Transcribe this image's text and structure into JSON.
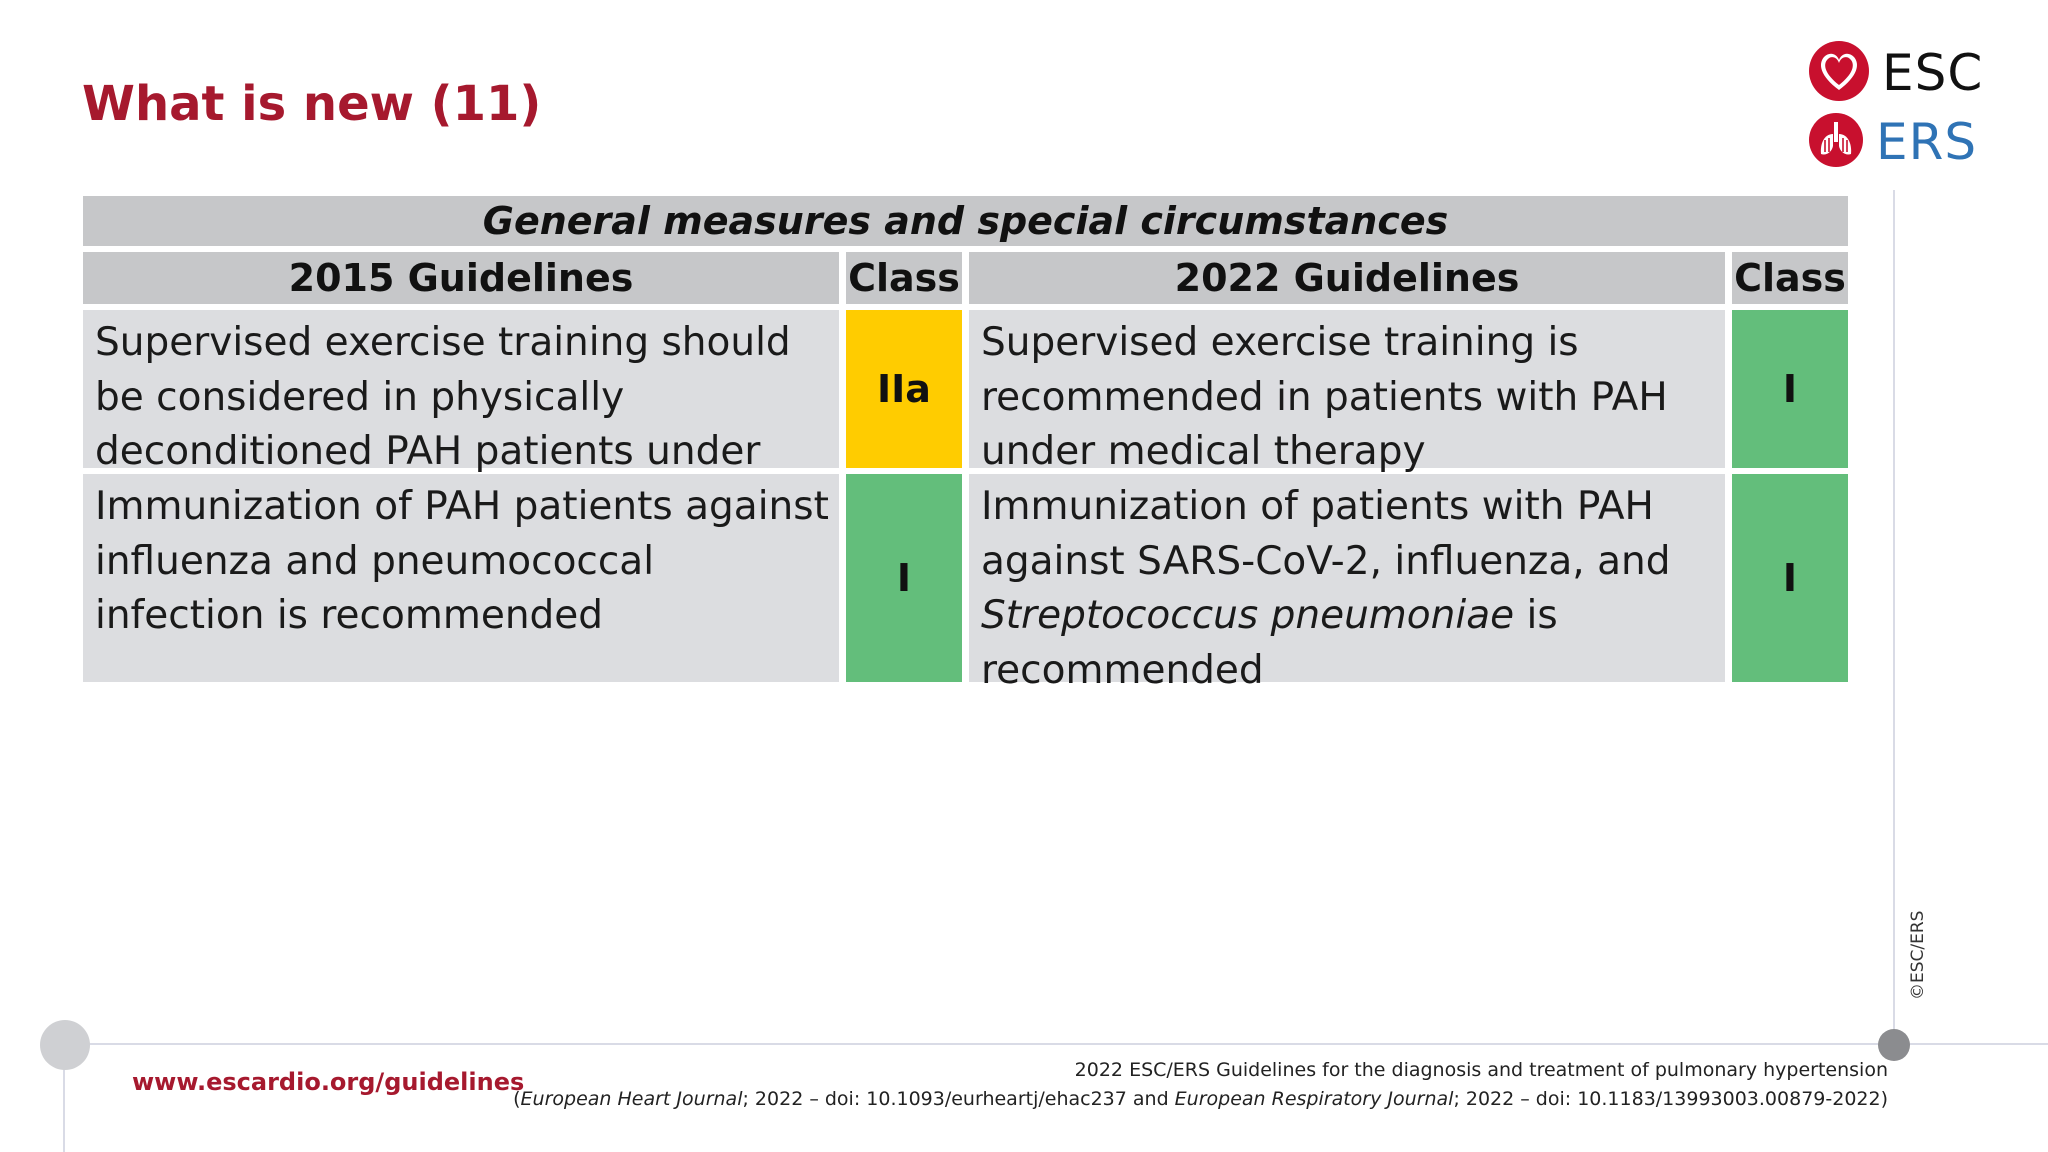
{
  "slide": {
    "title": "What is new (11)"
  },
  "logo": {
    "esc_text": "ESC",
    "ers_text": "ERS",
    "esc_icon": "heart-icon",
    "ers_icon": "lungs-icon"
  },
  "table": {
    "title": "General measures and special circumstances",
    "headers": {
      "col_2015": "2015 Guidelines",
      "class_2015": "Class",
      "col_2022": "2022 Guidelines",
      "class_2022": "Class"
    },
    "rows": [
      {
        "old_text": "Supervised exercise training should be considered in physically deconditioned PAH patients under medical therapy",
        "old_class": "IIa",
        "new_text": "Supervised exercise training is recommended in patients with PAH under medical therapy",
        "new_class": "I"
      },
      {
        "old_text": "Immunization of PAH patients against influenza and pneumococcal infection is recommended",
        "old_class": "I",
        "new_text_part1": "Immunization of patients with PAH against SARS-CoV-2, influenza, and",
        "new_text_italic": "Streptococcus pneumoniae",
        "new_text_part2": "is recommended",
        "new_class": "I"
      }
    ]
  },
  "colors": {
    "title": "#a6192e",
    "class_IIa": "#ffcc00",
    "class_I": "#63be7b",
    "ers_blue": "#2f73b5"
  },
  "footer": {
    "url": "www.escardio.org/guidelines",
    "ref_line1": "2022 ESC/ERS Guidelines for the diagnosis and treatment of pulmonary hypertension",
    "ref_journal1": "European Heart Journal",
    "ref_doi1": "; 2022 – doi: 10.1093/eurheartj/ehac237 and ",
    "ref_journal2": "European Respiratory Journal",
    "ref_doi2": "; 2022 – doi: 10.1183/13993003.00879-2022)",
    "ref_open": "("
  },
  "copyright": "©ESC/ERS"
}
